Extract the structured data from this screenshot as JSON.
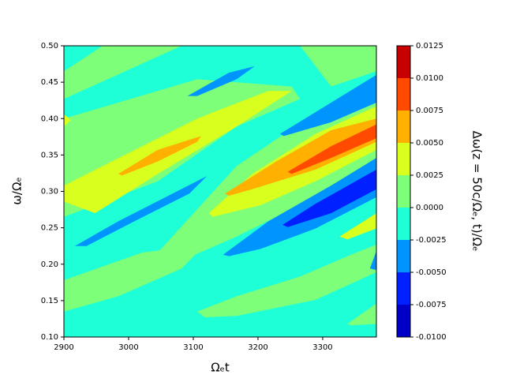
{
  "chart_data": {
    "type": "contour",
    "xlabel": "Ωₑt",
    "ylabel": "ω/Ωₑ",
    "colorbar_label": "Δω(z = 50c/Ωₑ, t)/Ωₑ",
    "xlim": [
      2900,
      3383
    ],
    "ylim": [
      0.1,
      0.5
    ],
    "xticks": [
      2900,
      3000,
      3100,
      3200,
      3300
    ],
    "yticks": [
      {
        "value": 0.1,
        "label": "0.10"
      },
      0.15,
      {
        "value": 0.2,
        "label": "0.20"
      },
      0.25,
      {
        "value": 0.3,
        "label": "0.30"
      },
      0.35,
      {
        "value": 0.4,
        "label": "0.40"
      },
      0.45,
      {
        "value": 0.5,
        "label": "0.50"
      }
    ],
    "colorbar_ticks": [
      {
        "value": -0.01,
        "label": "-0.0100"
      },
      -0.0075,
      {
        "value": -0.005,
        "label": "-0.0050"
      },
      -0.0025,
      {
        "value": 0,
        "label": "0.0000"
      },
      0.0025,
      {
        "value": 0.005,
        "label": "0.0050"
      },
      0.0075,
      {
        "value": 0.01,
        "label": "0.0100"
      },
      0.0125
    ],
    "colors": [
      "#0000c8",
      "#0020ff",
      "#0094ff",
      "#1effd8",
      "#7dff7a",
      "#d8ff1e",
      "#ffb000",
      "#ff4a00",
      "#c80000"
    ],
    "background_level": -0.0025,
    "regions": [
      {
        "level": 0,
        "x": [
          2900,
          2900,
          2960,
          3082
        ],
        "y": [
          0.427,
          0.465,
          0.5,
          0.5
        ]
      },
      {
        "level": 0,
        "x": [
          3265,
          3383,
          3383,
          3313
        ],
        "y": [
          0.5,
          0.5,
          0.465,
          0.444
        ]
      },
      {
        "level": 0,
        "x": [
          2900,
          2984,
          3106,
          3252,
          3265,
          3167,
          3045,
          2900
        ],
        "y": [
          0.4,
          0.422,
          0.454,
          0.444,
          0.427,
          0.389,
          0.314,
          0.265
        ]
      },
      {
        "level": 0,
        "x": [
          3045,
          3167,
          3313,
          3383,
          3383,
          3265,
          3167,
          3082
        ],
        "y": [
          0.216,
          0.335,
          0.422,
          0.449,
          0.346,
          0.281,
          0.238,
          0.205
        ]
      },
      {
        "level": 0,
        "x": [
          2900,
          3021,
          3118,
          3082,
          2984,
          2900
        ],
        "y": [
          0.178,
          0.216,
          0.227,
          0.194,
          0.156,
          0.135
        ]
      },
      {
        "level": 0,
        "x": [
          3106,
          3167,
          3265,
          3338,
          3383,
          3383,
          3289,
          3167,
          3118
        ],
        "y": [
          0.135,
          0.156,
          0.183,
          0.211,
          0.227,
          0.189,
          0.151,
          0.129,
          0.127
        ]
      },
      {
        "level": 0,
        "x": [
          3338,
          3383,
          3383,
          3344
        ],
        "y": [
          0.118,
          0.146,
          0.118,
          0.116
        ]
      },
      {
        "level": 0.0025,
        "x": [
          2900,
          2900,
          2960,
          3106,
          3216,
          3252,
          3167,
          3045,
          2948
        ],
        "y": [
          0.286,
          0.308,
          0.335,
          0.4,
          0.438,
          0.438,
          0.389,
          0.324,
          0.27
        ]
      },
      {
        "level": 0.0025,
        "x": [
          3124,
          3191,
          3289,
          3383,
          3383,
          3289,
          3204,
          3130
        ],
        "y": [
          0.27,
          0.324,
          0.379,
          0.417,
          0.357,
          0.314,
          0.281,
          0.265
        ]
      },
      {
        "level": 0.0025,
        "x": [
          2900,
          2911,
          2900
        ],
        "y": [
          0.406,
          0.398,
          0.389
        ]
      },
      {
        "level": 0.0025,
        "x": [
          3326,
          3383,
          3383,
          3338
        ],
        "y": [
          0.238,
          0.27,
          0.249,
          0.234
        ]
      },
      {
        "level": 0.005,
        "x": [
          2984,
          3045,
          3112,
          3106,
          3045,
          2990
        ],
        "y": [
          0.324,
          0.357,
          0.376,
          0.368,
          0.341,
          0.322
        ]
      },
      {
        "level": 0.005,
        "x": [
          3149,
          3228,
          3313,
          3383,
          3383,
          3289,
          3191,
          3155
        ],
        "y": [
          0.297,
          0.341,
          0.384,
          0.4,
          0.368,
          0.33,
          0.303,
          0.294
        ]
      },
      {
        "level": 0.0075,
        "x": [
          3246,
          3313,
          3383,
          3383,
          3313,
          3252
        ],
        "y": [
          0.327,
          0.362,
          0.392,
          0.373,
          0.346,
          0.324
        ]
      },
      {
        "level": -0.005,
        "x": [
          3091,
          3155,
          3195,
          3167,
          3106
        ],
        "y": [
          0.431,
          0.463,
          0.472,
          0.454,
          0.431
        ]
      },
      {
        "level": -0.005,
        "x": [
          3234,
          3313,
          3383,
          3383,
          3313,
          3240
        ],
        "y": [
          0.379,
          0.422,
          0.46,
          0.422,
          0.395,
          0.376
        ]
      },
      {
        "level": -0.005,
        "x": [
          2917,
          2984,
          3121,
          3094,
          3009,
          2935
        ],
        "y": [
          0.225,
          0.259,
          0.321,
          0.297,
          0.259,
          0.225
        ]
      },
      {
        "level": -0.005,
        "x": [
          3146,
          3216,
          3313,
          3383,
          3383,
          3289,
          3204,
          3155
        ],
        "y": [
          0.213,
          0.259,
          0.308,
          0.346,
          0.292,
          0.249,
          0.221,
          0.211
        ]
      },
      {
        "level": -0.005,
        "x": [
          3373,
          3383,
          3383
        ],
        "y": [
          0.194,
          0.218,
          0.192
        ]
      },
      {
        "level": -0.0075,
        "x": [
          3238,
          3289,
          3383,
          3383,
          3313,
          3246
        ],
        "y": [
          0.254,
          0.283,
          0.33,
          0.303,
          0.27,
          0.251
        ]
      }
    ]
  }
}
